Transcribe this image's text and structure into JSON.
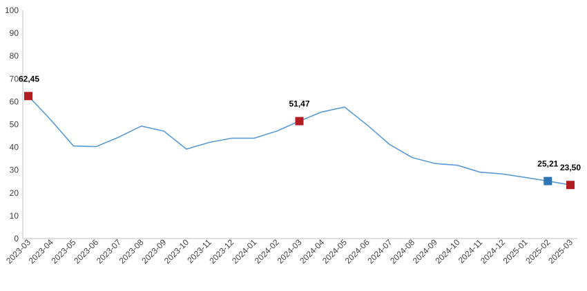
{
  "chart_data": {
    "type": "line",
    "title": "",
    "xlabel": "",
    "ylabel": "",
    "ylim": [
      0,
      100
    ],
    "yticks": [
      0,
      10,
      20,
      30,
      40,
      50,
      60,
      70,
      80,
      90,
      100
    ],
    "grid": false,
    "legend": "none",
    "categories": [
      "2023-03",
      "2023-04",
      "2023-05",
      "2023-06",
      "2023-07",
      "2023-08",
      "2023-09",
      "2023-10",
      "2023-11",
      "2023-12",
      "2024-01",
      "2024-02",
      "2024-03",
      "2024-04",
      "2024-05",
      "2024-06",
      "2024-07",
      "2024-08",
      "2024-09",
      "2024-10",
      "2024-11",
      "2024-12",
      "2025-01",
      "2025-02",
      "2025-03"
    ],
    "series": [
      {
        "line_color": "#5b9bd5",
        "values": [
          62.45,
          51.97,
          40.58,
          40.29,
          44.4,
          49.3,
          47.1,
          39.2,
          42.1,
          44.0,
          44.0,
          47.1,
          51.47,
          55.5,
          57.6,
          49.8,
          41.2,
          35.5,
          32.9,
          32.1,
          29.1,
          28.3,
          26.8,
          25.21,
          23.5
        ]
      }
    ],
    "highlights": [
      {
        "index": 0,
        "label": "62,45",
        "color": "#b01e23"
      },
      {
        "index": 12,
        "label": "51,47",
        "color": "#b01e23"
      },
      {
        "index": 23,
        "label": "25,21",
        "color": "#2e75b6"
      },
      {
        "index": 24,
        "label": "23,50",
        "color": "#b01e23"
      }
    ]
  }
}
